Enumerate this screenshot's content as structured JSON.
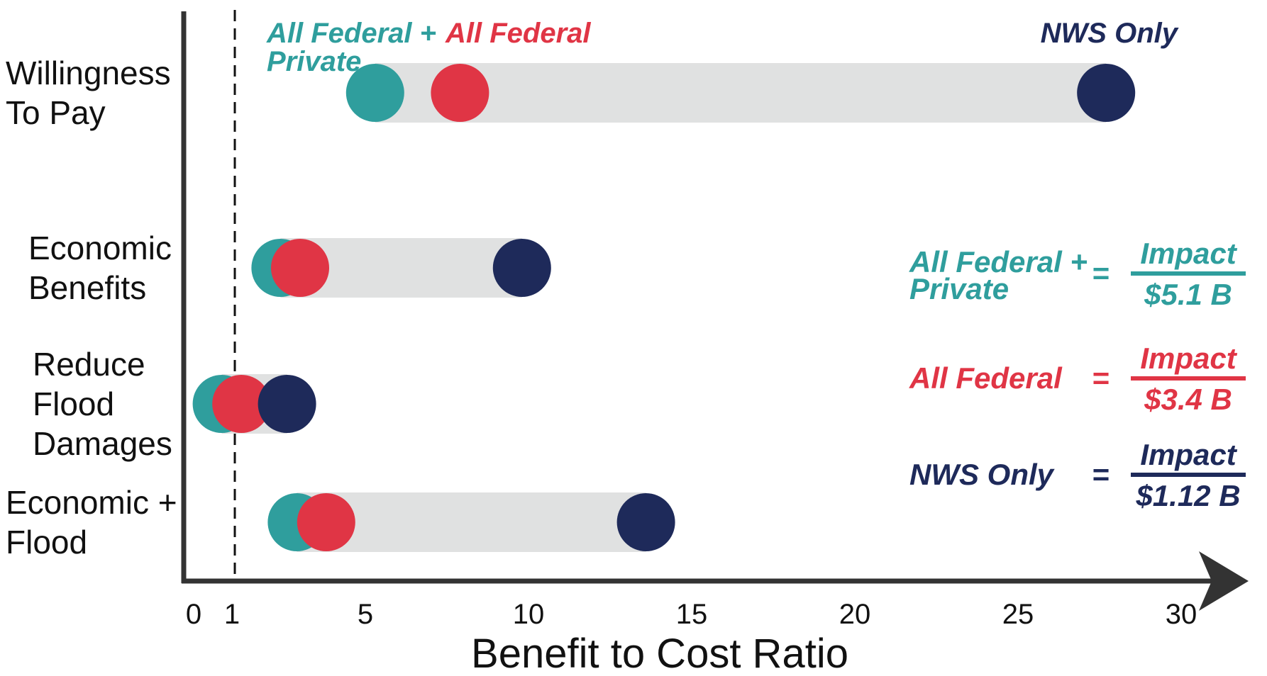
{
  "chart_data": {
    "type": "dot-range",
    "xlabel": "Benefit to Cost Ratio",
    "xlim": [
      0,
      30
    ],
    "x_ticks": [
      0,
      1,
      5,
      10,
      15,
      20,
      25,
      30
    ],
    "x_tick_labels": [
      "0",
      "1",
      "5",
      "10",
      "15",
      "20",
      "25",
      "30"
    ],
    "reference_line": 1,
    "categories": [
      [
        "Willingness",
        "To Pay"
      ],
      [
        "Economic",
        "Benefits"
      ],
      [
        "Reduce",
        "Flood",
        "Damages"
      ],
      [
        "Economic +",
        "Flood"
      ]
    ],
    "series": [
      {
        "name": "All Federal + Private",
        "label_lines": [
          "All Federal +",
          "Private"
        ],
        "color": "#2f9e9d",
        "values": [
          5.3,
          2.4,
          0.6,
          2.9
        ]
      },
      {
        "name": "All Federal",
        "label_lines": [
          "All Federal"
        ],
        "color": "#e03545",
        "values": [
          7.9,
          3.0,
          1.2,
          3.8
        ]
      },
      {
        "name": "NWS Only",
        "label_lines": [
          "NWS Only"
        ],
        "color": "#1e2a5a",
        "values": [
          27.7,
          9.8,
          2.6,
          13.6
        ]
      }
    ],
    "range_bar_color": "#e0e1e1"
  },
  "legend": [
    {
      "series": "All Federal + Private",
      "label_lines": [
        "All Federal +",
        "Private"
      ],
      "equals": "=",
      "numerator": "Impact",
      "denominator": "$5.1 B",
      "color": "#2f9e9d"
    },
    {
      "series": "All Federal",
      "label_lines": [
        "All Federal"
      ],
      "equals": "=",
      "numerator": "Impact",
      "denominator": "$3.4 B",
      "color": "#e03545"
    },
    {
      "series": "NWS Only",
      "label_lines": [
        "NWS Only"
      ],
      "equals": "=",
      "numerator": "Impact",
      "denominator": "$1.12 B",
      "color": "#1e2a5a"
    }
  ]
}
